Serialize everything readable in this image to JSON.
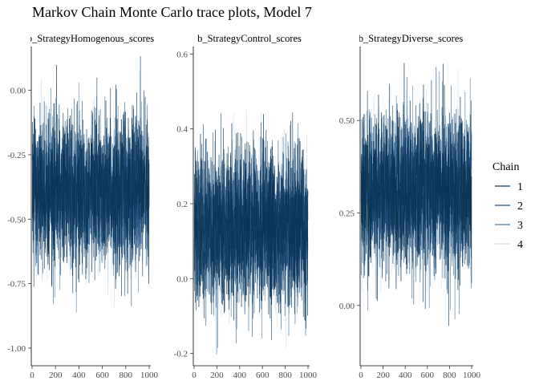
{
  "chart_data": {
    "type": "line",
    "title": "Markov Chain Monte Carlo trace plots, Model 7",
    "legend": {
      "title": "Chain",
      "position": "right",
      "entries": [
        "1",
        "2",
        "3",
        "4"
      ]
    },
    "series_colors": [
      "#0b3557",
      "#1f4e79",
      "#4d7ea8",
      "#d0dfeb"
    ],
    "iterations": 1000,
    "grid": false,
    "panels": [
      {
        "name": "b_StrategyHomogenous_scores",
        "strip_label": "b_StrategyHomogenous_scores",
        "xlim": [
          0,
          1000
        ],
        "ylim": [
          -1.05,
          0.17
        ],
        "x_ticks": [
          "0",
          "200",
          "400",
          "600",
          "800",
          "1000"
        ],
        "x_tick_values": [
          0,
          200,
          400,
          600,
          800,
          1000
        ],
        "y_ticks": [
          "-1.00",
          "-0.75",
          "-0.50",
          "-0.25",
          "0.00"
        ],
        "y_tick_values": [
          -1.0,
          -0.75,
          -0.5,
          -0.25,
          0.0
        ],
        "mean": -0.39,
        "sd": 0.14,
        "min": -1.0,
        "max": 0.14
      },
      {
        "name": "b_StrategyControl_scores",
        "strip_label": "b_StrategyControl_scores",
        "xlim": [
          0,
          1000
        ],
        "ylim": [
          -0.22,
          0.62
        ],
        "x_ticks": [
          "0",
          "200",
          "400",
          "600",
          "800",
          "1000"
        ],
        "x_tick_values": [
          0,
          200,
          400,
          600,
          800,
          1000
        ],
        "y_ticks": [
          "-0.2",
          "0.0",
          "0.2",
          "0.4",
          "0.6"
        ],
        "y_tick_values": [
          -0.2,
          0.0,
          0.2,
          0.4,
          0.6
        ],
        "mean": 0.14,
        "sd": 0.1,
        "min": -0.21,
        "max": 0.6
      },
      {
        "name": "b_StrategyDiverse_scores",
        "strip_label": "b_StrategyDiverse_scores",
        "xlim": [
          0,
          1000
        ],
        "ylim": [
          -0.15,
          0.7
        ],
        "x_ticks": [
          "0",
          "200",
          "400",
          "600",
          "800",
          "1000"
        ],
        "x_tick_values": [
          0,
          200,
          400,
          600,
          800,
          1000
        ],
        "y_ticks": [
          "0.00",
          "0.25",
          "0.50"
        ],
        "y_tick_values": [
          0.0,
          0.25,
          0.5
        ],
        "mean": 0.31,
        "sd": 0.1,
        "min": -0.12,
        "max": 0.66
      }
    ]
  }
}
